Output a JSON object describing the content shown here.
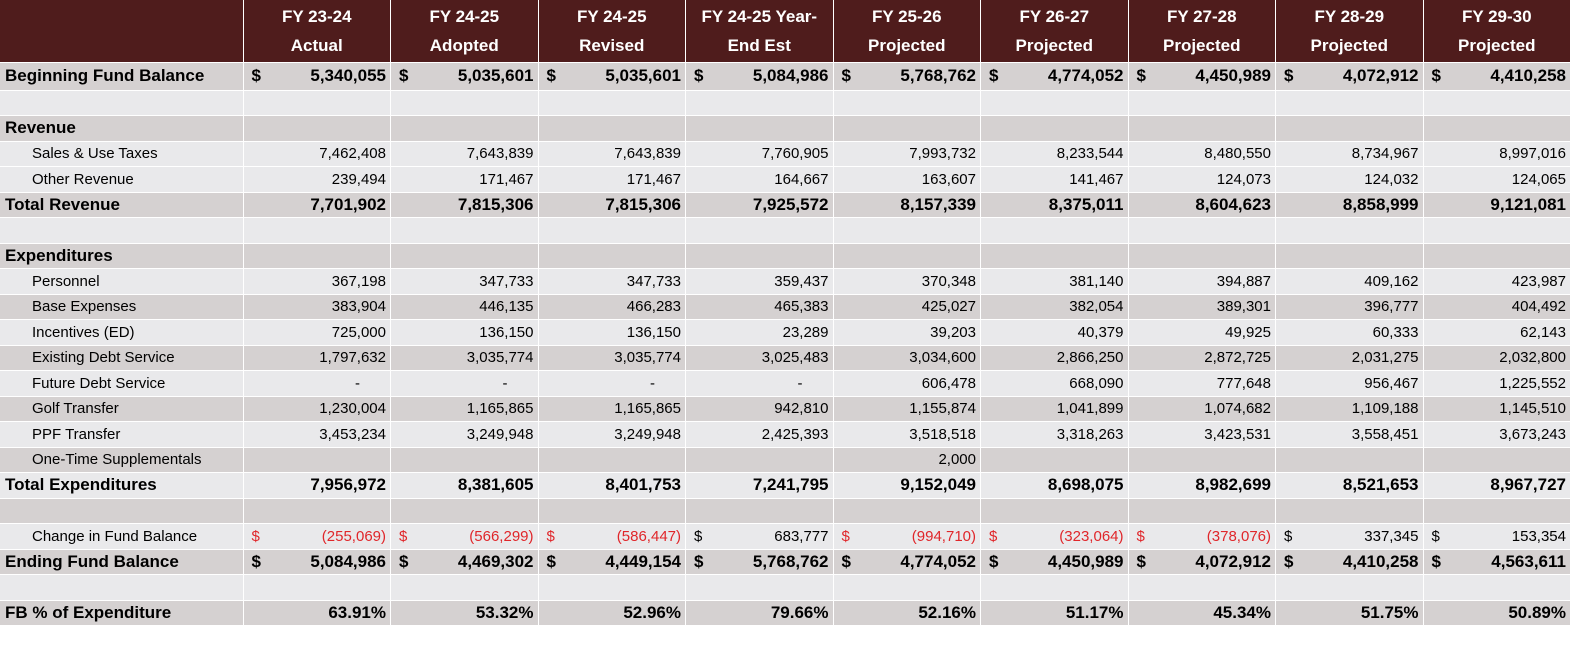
{
  "header": {
    "columns": [
      {
        "line1": "FY 23-24",
        "line2": "Actual"
      },
      {
        "line1": "FY 24-25",
        "line2": "Adopted"
      },
      {
        "line1": "FY 24-25",
        "line2": "Revised"
      },
      {
        "line1": "FY 24-25 Year-",
        "line2": "End Est"
      },
      {
        "line1": "FY 25-26",
        "line2": "Projected"
      },
      {
        "line1": "FY 26-27",
        "line2": "Projected"
      },
      {
        "line1": "FY 27-28",
        "line2": "Projected"
      },
      {
        "line1": "FY 28-29",
        "line2": "Projected"
      },
      {
        "line1": "FY 29-30",
        "line2": "Projected"
      }
    ]
  },
  "currency_symbol": "$",
  "rows": {
    "beginning": {
      "label": "Beginning Fund Balance",
      "values": [
        "5,340,055",
        "5,035,601",
        "5,035,601",
        "5,084,986",
        "5,768,762",
        "4,774,052",
        "4,450,989",
        "4,072,912",
        "4,410,258"
      ]
    },
    "revenue_header": {
      "label": "Revenue"
    },
    "sales_taxes": {
      "label": "Sales & Use Taxes",
      "values": [
        "7,462,408",
        "7,643,839",
        "7,643,839",
        "7,760,905",
        "7,993,732",
        "8,233,544",
        "8,480,550",
        "8,734,967",
        "8,997,016"
      ]
    },
    "other_revenue": {
      "label": "Other Revenue",
      "values": [
        "239,494",
        "171,467",
        "171,467",
        "164,667",
        "163,607",
        "141,467",
        "124,073",
        "124,032",
        "124,065"
      ]
    },
    "total_revenue": {
      "label": "Total Revenue",
      "values": [
        "7,701,902",
        "7,815,306",
        "7,815,306",
        "7,925,572",
        "8,157,339",
        "8,375,011",
        "8,604,623",
        "8,858,999",
        "9,121,081"
      ]
    },
    "expenditures_header": {
      "label": "Expenditures"
    },
    "personnel": {
      "label": "Personnel",
      "values": [
        "367,198",
        "347,733",
        "347,733",
        "359,437",
        "370,348",
        "381,140",
        "394,887",
        "409,162",
        "423,987"
      ]
    },
    "base_expenses": {
      "label": "Base Expenses",
      "values": [
        "383,904",
        "446,135",
        "466,283",
        "465,383",
        "425,027",
        "382,054",
        "389,301",
        "396,777",
        "404,492"
      ]
    },
    "incentives": {
      "label": "Incentives (ED)",
      "values": [
        "725,000",
        "136,150",
        "136,150",
        "23,289",
        "39,203",
        "40,379",
        "49,925",
        "60,333",
        "62,143"
      ]
    },
    "existing_debt": {
      "label": "Existing Debt Service",
      "values": [
        "1,797,632",
        "3,035,774",
        "3,035,774",
        "3,025,483",
        "3,034,600",
        "2,866,250",
        "2,872,725",
        "2,031,275",
        "2,032,800"
      ]
    },
    "future_debt": {
      "label": "Future Debt Service",
      "values": [
        "-",
        "-",
        "-",
        "-",
        "606,478",
        "668,090",
        "777,648",
        "956,467",
        "1,225,552"
      ]
    },
    "golf_transfer": {
      "label": "Golf Transfer",
      "values": [
        "1,230,004",
        "1,165,865",
        "1,165,865",
        "942,810",
        "1,155,874",
        "1,041,899",
        "1,074,682",
        "1,109,188",
        "1,145,510"
      ]
    },
    "ppf_transfer": {
      "label": "PPF Transfer",
      "values": [
        "3,453,234",
        "3,249,948",
        "3,249,948",
        "2,425,393",
        "3,518,518",
        "3,318,263",
        "3,423,531",
        "3,558,451",
        "3,673,243"
      ]
    },
    "one_time": {
      "label": "One-Time Supplementals",
      "values": [
        "",
        "",
        "",
        "",
        "2,000",
        "",
        "",
        "",
        ""
      ]
    },
    "total_expenditures": {
      "label": "Total Expenditures",
      "values": [
        "7,956,972",
        "8,381,605",
        "8,401,753",
        "7,241,795",
        "9,152,049",
        "8,698,075",
        "8,982,699",
        "8,521,653",
        "8,967,727"
      ]
    },
    "change_fb": {
      "label": "Change in Fund Balance",
      "values": [
        "(255,069)",
        "(566,299)",
        "(586,447)",
        "683,777",
        "(994,710)",
        "(323,064)",
        "(378,076)",
        "337,345",
        "153,354"
      ],
      "negative": [
        true,
        true,
        true,
        false,
        true,
        true,
        true,
        false,
        false
      ]
    },
    "ending": {
      "label": "Ending Fund Balance",
      "values": [
        "5,084,986",
        "4,469,302",
        "4,449,154",
        "5,768,762",
        "4,774,052",
        "4,450,989",
        "4,072,912",
        "4,410,258",
        "4,563,611"
      ]
    },
    "fb_pct": {
      "label": "FB % of Expenditure",
      "values": [
        "63.91%",
        "53.32%",
        "52.96%",
        "79.66%",
        "52.16%",
        "51.17%",
        "45.34%",
        "51.75%",
        "50.89%"
      ]
    }
  },
  "colors": {
    "header_bg": "#4f1c1c",
    "gray_row": "#d5d1d1",
    "light_row": "#e9e9eb",
    "negative": "#e0262a"
  }
}
